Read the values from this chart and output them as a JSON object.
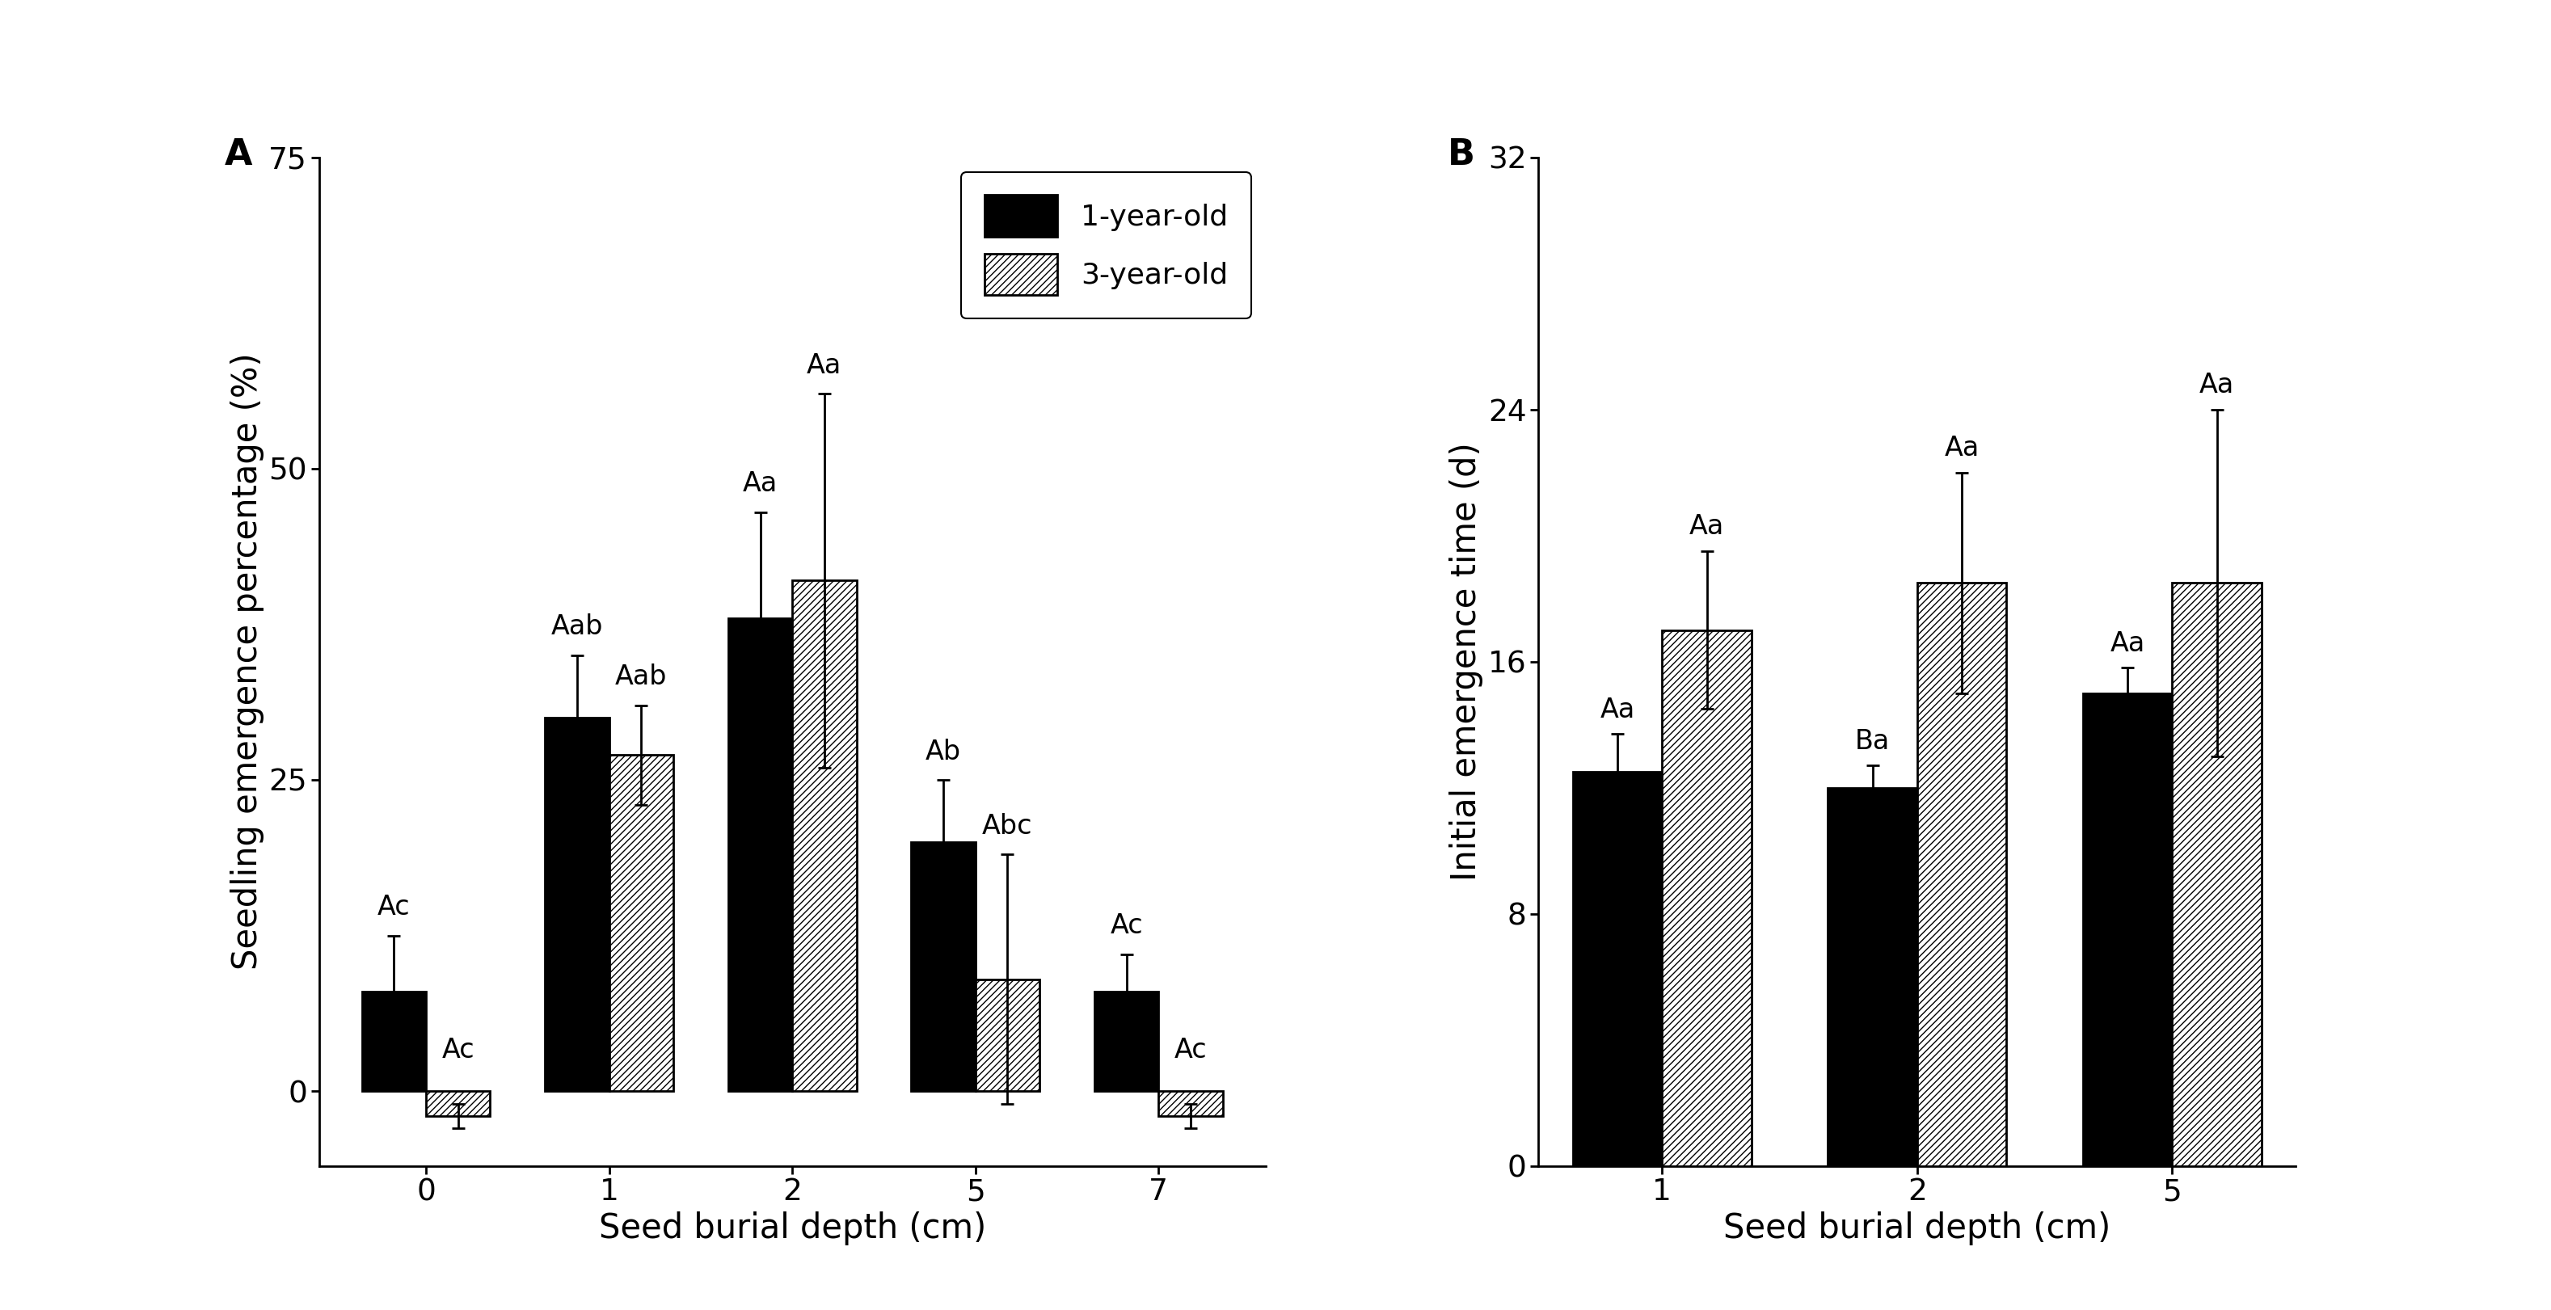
{
  "panel_A": {
    "depths": [
      "0",
      "1",
      "2",
      "5",
      "7"
    ],
    "bar1_values": [
      8.0,
      30.0,
      38.0,
      20.0,
      8.0
    ],
    "bar1_errors": [
      4.5,
      5.0,
      8.5,
      5.0,
      3.0
    ],
    "bar2_values": [
      -2.0,
      27.0,
      41.0,
      9.0,
      -2.0
    ],
    "bar2_errors": [
      1.0,
      4.0,
      15.0,
      10.0,
      1.0
    ],
    "ylim": [
      -6,
      75
    ],
    "yticks": [
      0,
      25,
      50,
      75
    ],
    "ylabel": "Seedling emergence percentage (%)",
    "label_A": "A",
    "annotations_bar1": [
      "Ac",
      "Aab",
      "Aa",
      "Ab",
      "Ac"
    ],
    "annotations_bar2": [
      "Ac",
      "Aab",
      "Aa",
      "Abc",
      "Ac"
    ]
  },
  "panel_B": {
    "depths": [
      "1",
      "2",
      "5"
    ],
    "bar1_values": [
      12.5,
      12.0,
      15.0
    ],
    "bar1_errors": [
      1.2,
      0.7,
      0.8
    ],
    "bar2_values": [
      17.0,
      18.5,
      18.5
    ],
    "bar2_errors": [
      2.5,
      3.5,
      5.5
    ],
    "ylim": [
      0,
      32
    ],
    "yticks": [
      0,
      8,
      16,
      24,
      32
    ],
    "ylabel": "Initial emergence time (d)",
    "label_B": "B",
    "annotations_bar1": [
      "Aa",
      "Ba",
      "Aa"
    ],
    "annotations_bar2": [
      "Aa",
      "Aa",
      "Aa"
    ]
  },
  "xlabel": "Seed burial depth (cm)",
  "legend_labels": [
    "1-year-old",
    "3-year-old"
  ],
  "bar_width": 0.35,
  "color_bar1": "#000000",
  "color_bar2": "#ffffff",
  "hatch_bar2": "////",
  "edgecolor": "#000000",
  "fontsize_label": 30,
  "fontsize_tick": 27,
  "fontsize_annot": 24,
  "fontsize_legend": 26,
  "fontsize_panel": 32
}
